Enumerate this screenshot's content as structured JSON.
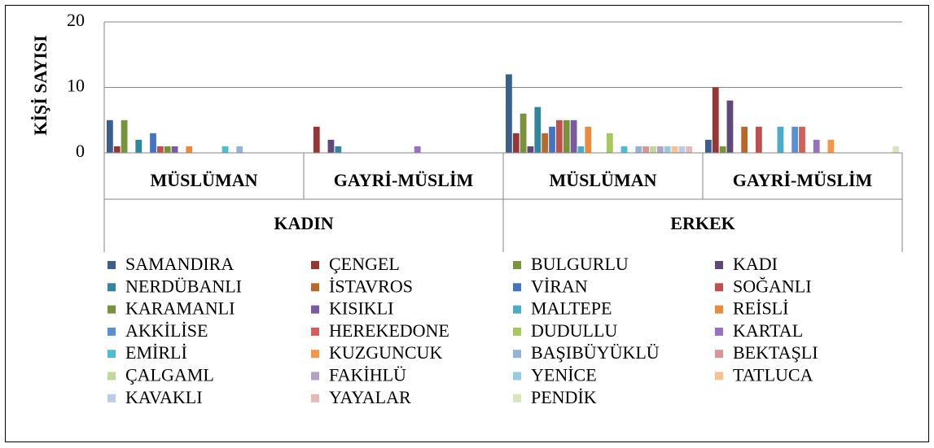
{
  "chart_data": {
    "type": "bar",
    "y_label": "KİŞİ SAYISI",
    "categories": [
      "MÜSLÜMAN",
      "GAYRİ-MÜSLİM",
      "MÜSLÜMAN",
      "GAYRİ-MÜSLİM"
    ],
    "groups": [
      "KADIN",
      "ERKEK"
    ],
    "ylim": [
      0,
      20
    ],
    "yticks": [
      0,
      10,
      20
    ],
    "grid": true,
    "legend": "bottom",
    "series": [
      {
        "name": "SAMANDIRA",
        "color": "#3a5f8f",
        "values": [
          5,
          0,
          12,
          2
        ]
      },
      {
        "name": "ÇENGEL",
        "color": "#953735",
        "values": [
          1,
          4,
          3,
          10
        ]
      },
      {
        "name": "BULGURLU",
        "color": "#77933c",
        "values": [
          5,
          0,
          6,
          1
        ]
      },
      {
        "name": "KADI",
        "color": "#5f497a",
        "values": [
          0,
          2,
          1,
          8
        ]
      },
      {
        "name": "NERDÜBANLI",
        "color": "#31859c",
        "values": [
          2,
          1,
          7,
          0
        ]
      },
      {
        "name": "İSTAVROS",
        "color": "#b8692a",
        "values": [
          0,
          0,
          3,
          4
        ]
      },
      {
        "name": "VİRAN",
        "color": "#4472c4",
        "values": [
          3,
          0,
          4,
          0
        ]
      },
      {
        "name": "SOĞANLI",
        "color": "#c0504d",
        "values": [
          1,
          0,
          5,
          4
        ]
      },
      {
        "name": "KARAMANLI",
        "color": "#76923c",
        "values": [
          1,
          0,
          5,
          0
        ]
      },
      {
        "name": "KISIKLI",
        "color": "#7a5aa0",
        "values": [
          1,
          0,
          5,
          0
        ]
      },
      {
        "name": "MALTEPE",
        "color": "#4bacc6",
        "values": [
          0,
          0,
          1,
          4
        ]
      },
      {
        "name": "REİSLİ",
        "color": "#e98a3d",
        "values": [
          1,
          0,
          4,
          0
        ]
      },
      {
        "name": "AKKİLİSE",
        "color": "#5b8fd4",
        "values": [
          0,
          0,
          0,
          4
        ]
      },
      {
        "name": "HEREKEDONE",
        "color": "#d0605c",
        "values": [
          0,
          0,
          0,
          4
        ]
      },
      {
        "name": "DUDULLU",
        "color": "#a8c85a",
        "values": [
          0,
          0,
          3,
          0
        ]
      },
      {
        "name": "KARTAL",
        "color": "#9472c0",
        "values": [
          0,
          1,
          0,
          2
        ]
      },
      {
        "name": "EMİRLİ",
        "color": "#4fbcd2",
        "values": [
          1,
          0,
          1,
          0
        ]
      },
      {
        "name": "KUZGUNCUK",
        "color": "#f79646",
        "values": [
          0,
          0,
          0,
          2
        ]
      },
      {
        "name": "BAŞIBÜYÜKLÜ",
        "color": "#95b3d7",
        "values": [
          1,
          0,
          1,
          0
        ]
      },
      {
        "name": "BEKTAŞLI",
        "color": "#d99694",
        "values": [
          0,
          0,
          1,
          0
        ]
      },
      {
        "name": "ÇALGAML",
        "color": "#c3d69b",
        "values": [
          0,
          0,
          1,
          0
        ]
      },
      {
        "name": "FAKİHLÜ",
        "color": "#b3a2c7",
        "values": [
          0,
          0,
          1,
          0
        ]
      },
      {
        "name": "YENİCE",
        "color": "#93cddd",
        "values": [
          0,
          0,
          1,
          0
        ]
      },
      {
        "name": "TATLUCA",
        "color": "#fac090",
        "values": [
          0,
          0,
          1,
          0
        ]
      },
      {
        "name": "KAVAKLI",
        "color": "#b9cde5",
        "values": [
          0,
          0,
          1,
          0
        ]
      },
      {
        "name": "YAYALAR",
        "color": "#e6b9b8",
        "values": [
          0,
          0,
          1,
          0
        ]
      },
      {
        "name": "PENDİK",
        "color": "#d7e4bd",
        "values": [
          0,
          0,
          0,
          1
        ]
      }
    ]
  }
}
